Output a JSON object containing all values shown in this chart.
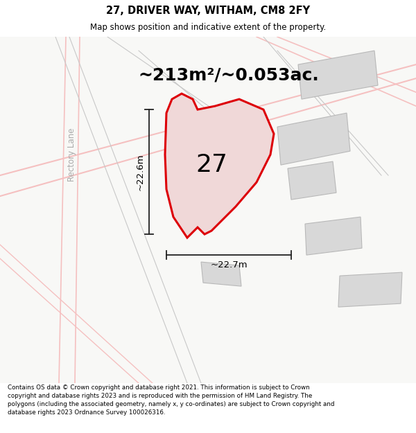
{
  "title": "27, DRIVER WAY, WITHAM, CM8 2FY",
  "subtitle": "Map shows position and indicative extent of the property.",
  "footer": "Contains OS data © Crown copyright and database right 2021. This information is subject to Crown copyright and database rights 2023 and is reproduced with the permission of HM Land Registry. The polygons (including the associated geometry, namely x, y co-ordinates) are subject to Crown copyright and database rights 2023 Ordnance Survey 100026316.",
  "area_label": "~213m²/~0.053ac.",
  "plot_number": "27",
  "dim_width": "~22.7m",
  "dim_height": "~22.6m",
  "map_bg": "#f8f8f6",
  "plot_fill": "#f0d8d8",
  "plot_edge": "#dd0008",
  "road_pink": "#f5c0c0",
  "road_pink2": "#f0a8a8",
  "gray_line": "#c8c8c8",
  "building_fill": "#d8d8d8",
  "building_edge": "#b8b8b8",
  "dim_line_color": "#222222",
  "road_label_color": "#aaaaaa",
  "road_label": "Rectory Lane",
  "title_fontsize": 10.5,
  "subtitle_fontsize": 8.5,
  "footer_fontsize": 6.3,
  "label_fontsize": 18,
  "number_fontsize": 26,
  "dim_fontsize": 9.5
}
